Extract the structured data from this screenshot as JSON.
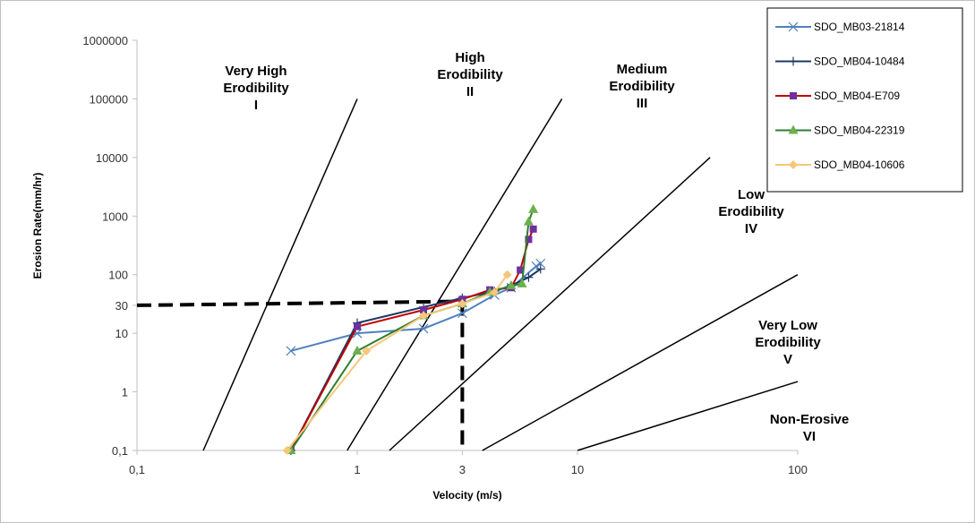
{
  "chart_data": {
    "type": "scatter",
    "xscale": "log",
    "yscale": "log",
    "xlabel": "Velocity (m/s)",
    "ylabel": "Erosion Rate(mm/hr)",
    "xlim": [
      0.1,
      100
    ],
    "ylim": [
      0.1,
      1000000
    ],
    "xticks": [
      {
        "value": 0.1,
        "label": "0,1"
      },
      {
        "value": 1,
        "label": "1"
      },
      {
        "value": 3,
        "label": "3"
      },
      {
        "value": 10,
        "label": "10"
      },
      {
        "value": 100,
        "label": "100"
      }
    ],
    "yticks": [
      {
        "value": 0.1,
        "label": "0,1"
      },
      {
        "value": 1,
        "label": "1"
      },
      {
        "value": 10,
        "label": "10"
      },
      {
        "value": 30,
        "label": "30"
      },
      {
        "value": 100,
        "label": "100"
      },
      {
        "value": 1000,
        "label": "1000"
      },
      {
        "value": 10000,
        "label": "10000"
      },
      {
        "value": 100000,
        "label": "100000"
      },
      {
        "value": 1000000,
        "label": "1000000"
      }
    ],
    "legend_position": "top-right",
    "series": [
      {
        "name": "SDO_MB03-21814",
        "color": "#4f81bd",
        "marker": "x",
        "points": [
          [
            0.5,
            5
          ],
          [
            1.0,
            10
          ],
          [
            2.0,
            12
          ],
          [
            3.0,
            22
          ],
          [
            4.2,
            45
          ],
          [
            5.0,
            60
          ],
          [
            6.5,
            140
          ],
          [
            6.8,
            155
          ]
        ]
      },
      {
        "name": "SDO_MB04-10484",
        "color": "#1f3864",
        "marker": "plus",
        "points": [
          [
            0.5,
            0.1
          ],
          [
            1.0,
            15
          ],
          [
            2.0,
            28
          ],
          [
            3.0,
            40
          ],
          [
            4.2,
            52
          ],
          [
            5.0,
            65
          ],
          [
            6.0,
            90
          ],
          [
            6.8,
            125
          ]
        ]
      },
      {
        "name": "SDO_MB04-E709",
        "color": "#c00000",
        "marker": "square",
        "marker_color": "#7030a0",
        "points": [
          [
            0.5,
            0.1
          ],
          [
            1.0,
            13
          ],
          [
            2.0,
            25
          ],
          [
            3.0,
            38
          ],
          [
            4.0,
            55
          ],
          [
            5.0,
            60
          ],
          [
            5.5,
            120
          ],
          [
            6.0,
            400
          ],
          [
            6.3,
            600
          ]
        ]
      },
      {
        "name": "SDO_MB04-22319",
        "color": "#2e7d32",
        "marker": "triangle",
        "marker_color": "#6ab04c",
        "points": [
          [
            0.5,
            0.1
          ],
          [
            1.0,
            5
          ],
          [
            2.0,
            20
          ],
          [
            3.0,
            32
          ],
          [
            4.0,
            50
          ],
          [
            5.0,
            65
          ],
          [
            5.6,
            70
          ],
          [
            6.0,
            800
          ],
          [
            6.3,
            1300
          ]
        ]
      },
      {
        "name": "SDO_MB04-10606",
        "color": "#f5c779",
        "marker": "diamond",
        "points": [
          [
            0.48,
            0.1
          ],
          [
            1.1,
            5
          ],
          [
            2.0,
            20
          ],
          [
            3.0,
            32
          ],
          [
            4.2,
            50
          ],
          [
            4.8,
            100
          ]
        ]
      }
    ],
    "reference_lines": [
      {
        "x1": 0.2,
        "y1": 0.1,
        "x2": 1.0,
        "y2": 100000
      },
      {
        "x1": 0.9,
        "y1": 0.1,
        "x2": 8.5,
        "y2": 100000
      },
      {
        "x1": 1.4,
        "y1": 0.1,
        "x2": 40,
        "y2": 10000
      },
      {
        "x1": 3.7,
        "y1": 0.1,
        "x2": 100,
        "y2": 100
      },
      {
        "x1": 10,
        "y1": 0.1,
        "x2": 100,
        "y2": 1.5
      }
    ],
    "threshold_lines": [
      {
        "from": [
          0.1,
          30
        ],
        "to": [
          3,
          35
        ]
      },
      {
        "from": [
          3,
          35
        ],
        "to": [
          3,
          0.1
        ]
      }
    ],
    "zones": [
      {
        "lines": [
          "Very High",
          "Erodibility",
          "I"
        ]
      },
      {
        "lines": [
          "High",
          "Erodibility",
          "II"
        ]
      },
      {
        "lines": [
          "Medium",
          "Erodibility",
          "III"
        ]
      },
      {
        "lines": [
          "Low",
          "Erodibility",
          "IV"
        ]
      },
      {
        "lines": [
          "Very Low",
          "Erodibility",
          "V"
        ]
      },
      {
        "lines": [
          "Non-Erosive",
          "VI"
        ]
      }
    ]
  }
}
